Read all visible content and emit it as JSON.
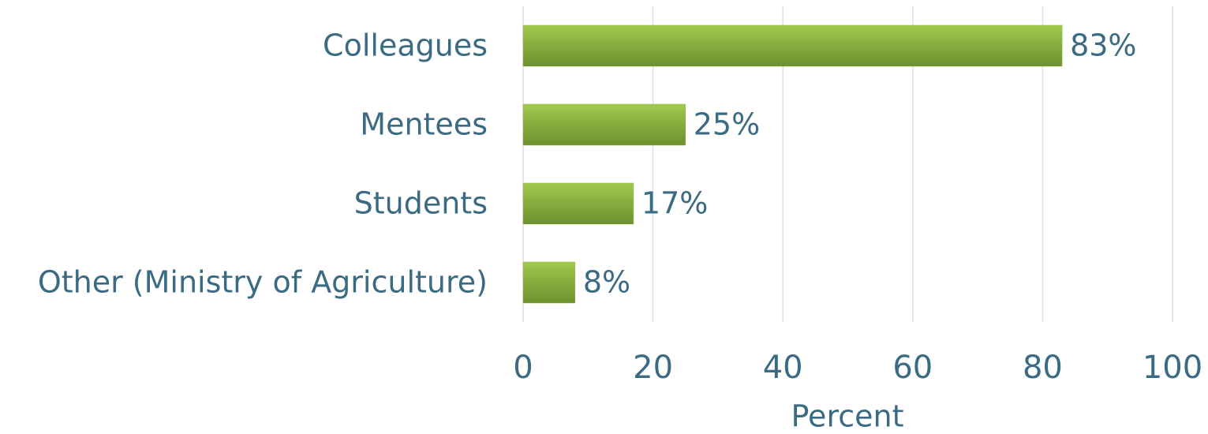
{
  "chart_data": {
    "type": "hbar",
    "categories": [
      "Colleagues",
      "Mentees",
      "Students",
      "Other (Ministry of Agriculture)"
    ],
    "values": [
      83,
      25,
      17,
      8
    ],
    "value_labels": [
      "83%",
      "25%",
      "17%",
      "8%"
    ],
    "color": "#8db53c",
    "xlim": [
      0,
      100
    ],
    "xticks": [
      0,
      20,
      40,
      60,
      80,
      100
    ],
    "x_label": "Percent",
    "grid": true
  }
}
